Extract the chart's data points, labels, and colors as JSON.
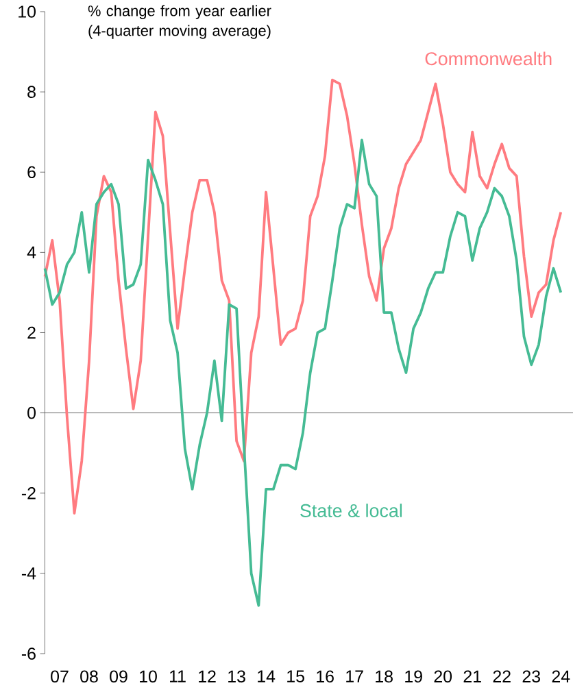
{
  "chart_data": {
    "type": "line",
    "ylabel": "% change from year earlier (4-quarter moving average)",
    "categories": [
      null,
      null,
      "07",
      null,
      null,
      null,
      "08",
      null,
      null,
      null,
      "09",
      null,
      null,
      null,
      "10",
      null,
      null,
      null,
      "11",
      null,
      null,
      null,
      "12",
      null,
      null,
      null,
      "13",
      null,
      null,
      null,
      "14",
      null,
      null,
      null,
      "15",
      null,
      null,
      null,
      "16",
      null,
      null,
      null,
      "17",
      null,
      null,
      null,
      "18",
      null,
      null,
      null,
      "19",
      null,
      null,
      null,
      "20",
      null,
      null,
      null,
      "21",
      null,
      null,
      null,
      "22",
      null,
      null,
      null,
      "23",
      null,
      null,
      null,
      "24"
    ],
    "series": [
      {
        "name": "Commonwealth",
        "color": "#ff7b80",
        "values": [
          3.4,
          4.3,
          2.8,
          -0.1,
          -2.5,
          -1.2,
          1.3,
          4.9,
          5.9,
          5.5,
          3.3,
          1.6,
          0.1,
          1.3,
          4.4,
          7.5,
          6.9,
          4.5,
          2.1,
          3.6,
          5.0,
          5.8,
          5.8,
          5.0,
          3.3,
          2.8,
          -0.7,
          -1.2,
          1.5,
          2.4,
          5.5,
          3.6,
          1.7,
          2.0,
          2.1,
          2.8,
          4.9,
          5.4,
          6.4,
          8.3,
          8.2,
          7.4,
          6.2,
          4.7,
          3.4,
          2.8,
          4.1,
          4.6,
          5.6,
          6.2,
          6.5,
          6.8,
          7.5,
          8.2,
          7.2,
          6.0,
          5.7,
          5.5,
          7.0,
          5.9,
          5.6,
          6.2,
          6.7,
          6.1,
          5.9,
          3.9,
          2.4,
          3.0,
          3.2,
          4.3,
          5.0
        ]
      },
      {
        "name": "State & local",
        "color": "#45bb94",
        "values": [
          3.6,
          2.7,
          3.0,
          3.7,
          4.0,
          5.0,
          3.5,
          5.2,
          5.5,
          5.7,
          5.2,
          3.1,
          3.2,
          3.7,
          6.3,
          5.8,
          5.2,
          2.3,
          1.5,
          -0.9,
          -1.9,
          -0.8,
          0.0,
          1.3,
          -0.2,
          2.7,
          2.6,
          -0.8,
          -4.0,
          -4.8,
          -1.9,
          -1.9,
          -1.3,
          -1.3,
          -1.4,
          -0.5,
          1.0,
          2.0,
          2.1,
          3.3,
          4.6,
          5.2,
          5.1,
          6.8,
          5.7,
          5.4,
          2.5,
          2.5,
          1.6,
          1.0,
          2.1,
          2.5,
          3.1,
          3.5,
          3.5,
          4.4,
          5.0,
          4.9,
          3.8,
          4.6,
          5.0,
          5.6,
          5.4,
          4.9,
          3.8,
          1.9,
          1.2,
          1.7,
          2.9,
          3.6,
          3.0
        ]
      }
    ],
    "ylim": [
      -6,
      10
    ],
    "yticks": [
      -6,
      -4,
      -2,
      0,
      2,
      4,
      6,
      8,
      10
    ]
  }
}
